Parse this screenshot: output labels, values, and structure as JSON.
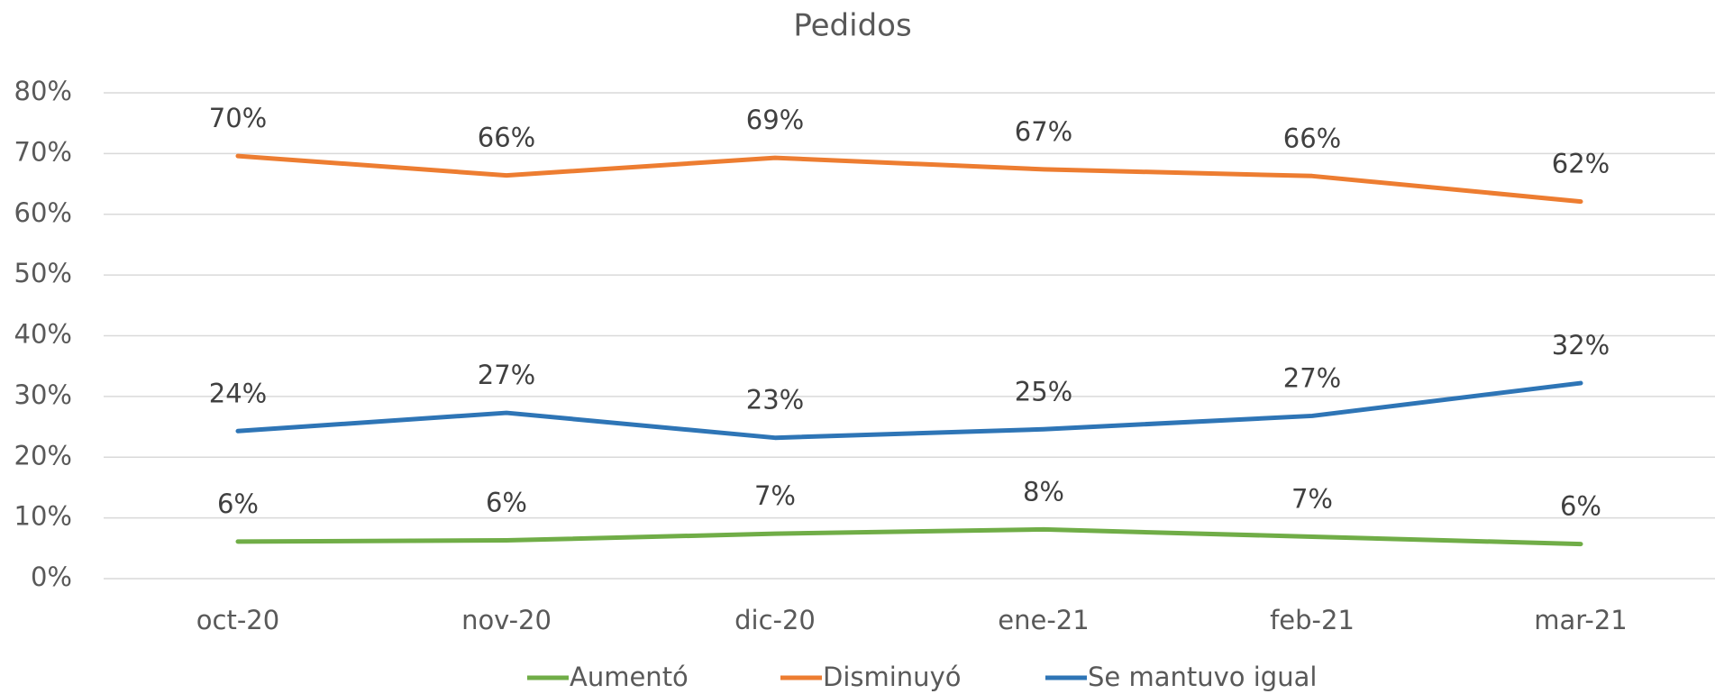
{
  "chart_data": {
    "type": "line",
    "title": "Pedidos",
    "categories": [
      "oct-20",
      "nov-20",
      "dic-20",
      "ene-21",
      "feb-21",
      "mar-21"
    ],
    "series": [
      {
        "name": "Aumentó",
        "color": "#70ad47",
        "values": [
          6.1,
          6.3,
          7.4,
          8.1,
          6.9,
          5.7
        ],
        "value_labels": [
          "6%",
          "6%",
          "7%",
          "8%",
          "7%",
          "6%"
        ]
      },
      {
        "name": "Disminuyó",
        "color": "#ed7d31",
        "values": [
          69.6,
          66.4,
          69.3,
          67.4,
          66.3,
          62.1
        ],
        "value_labels": [
          "70%",
          "66%",
          "69%",
          "67%",
          "66%",
          "62%"
        ]
      },
      {
        "name": "Se mantuvo igual",
        "color": "#2e75b6",
        "values": [
          24.3,
          27.3,
          23.2,
          24.6,
          26.8,
          32.2
        ],
        "value_labels": [
          "24%",
          "27%",
          "23%",
          "25%",
          "27%",
          "32%"
        ]
      }
    ],
    "ylim": [
      0,
      80
    ],
    "yticks": [
      {
        "value": 0,
        "label": "0%"
      },
      {
        "value": 10,
        "label": "10%"
      },
      {
        "value": 20,
        "label": "20%"
      },
      {
        "value": 30,
        "label": "30%"
      },
      {
        "value": 40,
        "label": "40%"
      },
      {
        "value": 50,
        "label": "50%"
      },
      {
        "value": 60,
        "label": "60%"
      },
      {
        "value": 70,
        "label": "70%"
      },
      {
        "value": 80,
        "label": "80%"
      }
    ],
    "grid": true,
    "legend": "bottom"
  }
}
